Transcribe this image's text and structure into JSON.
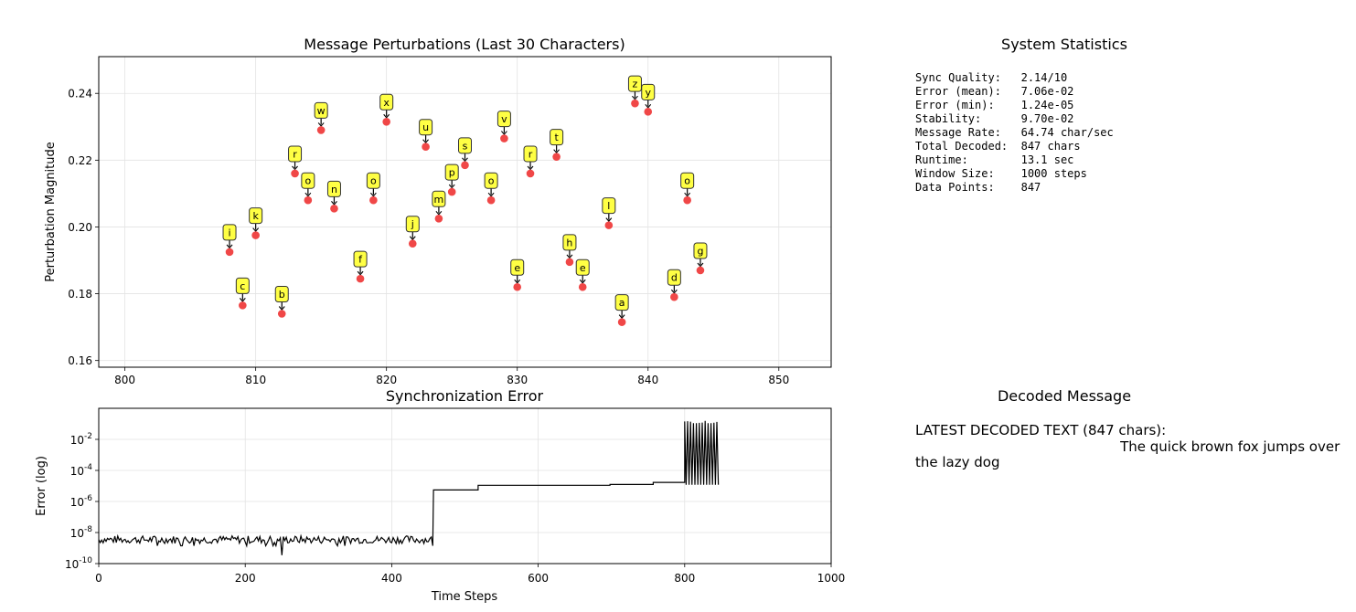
{
  "chart_data": [
    {
      "type": "scatter",
      "title": "Message Perturbations (Last 30 Characters)",
      "xlabel": "",
      "ylabel": "Perturbation Magnitude",
      "xlim": [
        798,
        854
      ],
      "ylim": [
        0.158,
        0.251
      ],
      "xticks": [
        800,
        810,
        820,
        830,
        840,
        850
      ],
      "yticks": [
        0.16,
        0.18,
        0.2,
        0.22,
        0.24
      ],
      "ytick_labels": [
        "0.16",
        "0.18",
        "0.20",
        "0.22",
        "0.24"
      ],
      "grid": true,
      "marker_color": "#ee3333",
      "label_box_color": "#ffff44",
      "points": [
        {
          "x": 808,
          "y": 0.1925,
          "label": "i"
        },
        {
          "x": 809,
          "y": 0.1765,
          "label": "c"
        },
        {
          "x": 810,
          "y": 0.1975,
          "label": "k"
        },
        {
          "x": 812,
          "y": 0.174,
          "label": "b"
        },
        {
          "x": 813,
          "y": 0.216,
          "label": "r"
        },
        {
          "x": 814,
          "y": 0.208,
          "label": "o"
        },
        {
          "x": 815,
          "y": 0.229,
          "label": "w"
        },
        {
          "x": 816,
          "y": 0.2055,
          "label": "n"
        },
        {
          "x": 818,
          "y": 0.1845,
          "label": "f"
        },
        {
          "x": 819,
          "y": 0.208,
          "label": "o"
        },
        {
          "x": 820,
          "y": 0.2315,
          "label": "x"
        },
        {
          "x": 822,
          "y": 0.195,
          "label": "j"
        },
        {
          "x": 823,
          "y": 0.224,
          "label": "u"
        },
        {
          "x": 824,
          "y": 0.2025,
          "label": "m"
        },
        {
          "x": 825,
          "y": 0.2105,
          "label": "p"
        },
        {
          "x": 826,
          "y": 0.2185,
          "label": "s"
        },
        {
          "x": 828,
          "y": 0.208,
          "label": "o"
        },
        {
          "x": 829,
          "y": 0.2265,
          "label": "v"
        },
        {
          "x": 830,
          "y": 0.182,
          "label": "e"
        },
        {
          "x": 831,
          "y": 0.216,
          "label": "r"
        },
        {
          "x": 833,
          "y": 0.221,
          "label": "t"
        },
        {
          "x": 834,
          "y": 0.1895,
          "label": "h"
        },
        {
          "x": 835,
          "y": 0.182,
          "label": "e"
        },
        {
          "x": 837,
          "y": 0.2005,
          "label": "l"
        },
        {
          "x": 838,
          "y": 0.1715,
          "label": "a"
        },
        {
          "x": 839,
          "y": 0.237,
          "label": "z"
        },
        {
          "x": 840,
          "y": 0.2345,
          "label": "y"
        },
        {
          "x": 842,
          "y": 0.179,
          "label": "d"
        },
        {
          "x": 843,
          "y": 0.208,
          "label": "o"
        },
        {
          "x": 844,
          "y": 0.187,
          "label": "g"
        }
      ]
    },
    {
      "type": "line",
      "title": "Synchronization Error",
      "xlabel": "Time Steps",
      "ylabel": "Error (log)",
      "xlim": [
        0,
        1000
      ],
      "ylim_log10": [
        -10,
        0
      ],
      "yscale": "log",
      "xticks": [
        0,
        200,
        400,
        600,
        800,
        1000
      ],
      "yticks_log10": [
        -10,
        -8,
        -6,
        -4,
        -2
      ],
      "grid": true,
      "line_color": "#000000",
      "segments": [
        {
          "x_start": 0,
          "x_end": 457,
          "level": 3.5e-09,
          "behavior": "noise"
        },
        {
          "x_start": 457,
          "x_end": 518,
          "level": 5.5e-06
        },
        {
          "x_start": 518,
          "x_end": 698,
          "level": 1.1e-05
        },
        {
          "x_start": 698,
          "x_end": 757,
          "level": 1.25e-05
        },
        {
          "x_start": 757,
          "x_end": 800,
          "level": 1.7e-05
        },
        {
          "x_start": 800,
          "x_end": 847,
          "level": 0.13,
          "behavior": "oscillating",
          "low": 1.2e-05
        }
      ]
    }
  ],
  "stats_panel": {
    "title": "System Statistics",
    "text": "Sync Quality:   2.14/10\nError (mean):   7.06e-02\nError (min):    1.24e-05\nStability:      9.70e-02\nMessage Rate:   64.74 char/sec\nTotal Decoded:  847 chars\nRuntime:        13.1 sec\nWindow Size:    1000 steps\nData Points:    847"
  },
  "decoded_panel": {
    "title": "Decoded Message",
    "text": "LATEST DECODED TEXT (847 chars):\n                                               The quick brown fox jumps over the lazy dog"
  }
}
